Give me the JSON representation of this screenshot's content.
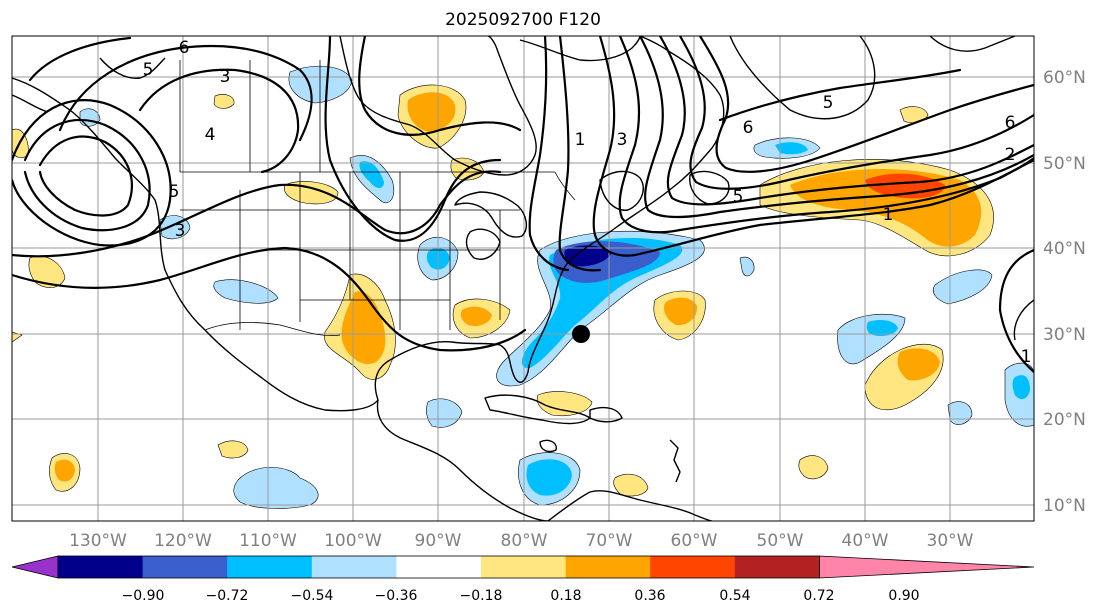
{
  "title": "2025092700 F120",
  "latitude_labels": [
    "60°N",
    "50°N",
    "40°N",
    "30°N",
    "20°N",
    "10°N"
  ],
  "longitude_labels": [
    "130°W",
    "120°W",
    "110°W",
    "100°W",
    "90°W",
    "80°W",
    "70°W",
    "60°W",
    "50°W",
    "40°W",
    "30°W"
  ],
  "contour_labels": [
    "6",
    "5",
    "3",
    "4",
    "5",
    "3",
    "1",
    "3",
    "5",
    "6",
    "5",
    "6",
    "2",
    "1",
    "1"
  ],
  "colorbar": {
    "tick_labels": [
      "−0.90",
      "−0.72",
      "−0.54",
      "−0.36",
      "−0.18",
      "0.18",
      "0.36",
      "0.54",
      "0.72",
      "0.90"
    ],
    "colors": [
      "#9932cc",
      "#00008b",
      "#3a5fcd",
      "#00bfff",
      "#b0e0ff",
      "#ffffff",
      "#ffe680",
      "#ffa500",
      "#ff4500",
      "#b22222",
      "#ff85a8"
    ]
  },
  "colors": {
    "strong_negative": "#3a5fcd",
    "very_strong_negative": "#00008b",
    "negative": "#00bfff",
    "weak_negative": "#b0e0ff",
    "weak_positive": "#ffe680",
    "positive": "#ffa500",
    "strong_positive": "#ff4500",
    "very_strong_positive": "#b22222"
  }
}
